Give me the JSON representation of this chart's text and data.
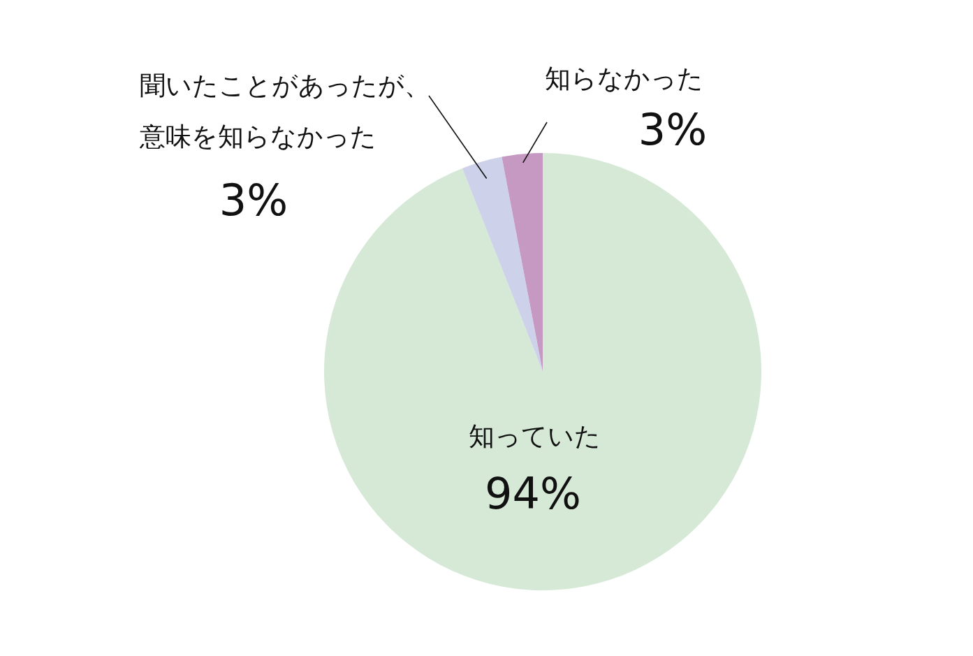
{
  "chart_data": {
    "type": "pie",
    "categories": [
      "知っていた",
      "聞いたことがあったが、意味を知らなかった",
      "知らなかった"
    ],
    "values": [
      94,
      3,
      3
    ],
    "colors": [
      "#d5e9d6",
      "#cdd2ea",
      "#c699c3"
    ],
    "value_labels": [
      "94%",
      "3%",
      "3%"
    ]
  }
}
